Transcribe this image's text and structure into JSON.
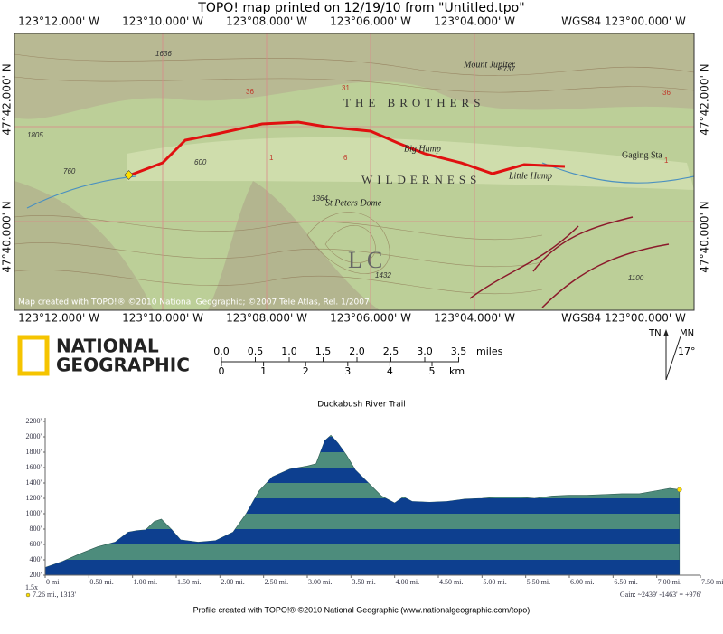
{
  "header": {
    "title": "TOPO! map printed on 12/19/10 from \"Untitled.tpo\""
  },
  "map": {
    "top_coords": [
      "123°12.000' W",
      "123°10.000' W",
      "123°08.000' W",
      "123°06.000' W",
      "123°04.000' W",
      "WGS84 123°00.000' W"
    ],
    "side_coords": [
      "47°42.000' N",
      "47°40.000' N"
    ],
    "labels": {
      "brothers": "THE BROTHERS",
      "wilderness": "WILDERNESS",
      "mount_jupiter": "Mount Jupiter",
      "big_hump": "Big Hump",
      "little_hump": "Little Hump",
      "st_peters": "St Peters Dome",
      "gaging": "Gaging Sta",
      "lc": "LC"
    },
    "elevations": [
      "1636",
      "5737",
      "1805",
      "760",
      "600",
      "1364",
      "1432",
      "1100"
    ],
    "sections": [
      "36",
      "31",
      "6",
      "1",
      "36",
      "1"
    ],
    "credit": "Map created with TOPO!® ©2010 National Geographic; ©2007 Tele Atlas, Rel. 1/2007"
  },
  "logo": {
    "line1": "NATIONAL",
    "line2": "GEOGRAPHIC"
  },
  "scale": {
    "miles": [
      "0.0",
      "0.5",
      "1.0",
      "1.5",
      "2.0",
      "2.5",
      "3.0",
      "3.5"
    ],
    "miles_unit": "miles",
    "km": [
      "0",
      "1",
      "2",
      "3",
      "4",
      "5"
    ],
    "km_unit": "km"
  },
  "north": {
    "tn": "TN",
    "mn": "MN",
    "declination": "17°"
  },
  "chart_data": {
    "type": "area",
    "title": "Duckabush River Trail",
    "x": [
      0,
      0.2,
      0.4,
      0.6,
      0.8,
      0.95,
      1.05,
      1.15,
      1.25,
      1.33,
      1.45,
      1.55,
      1.75,
      1.95,
      2.15,
      2.3,
      2.45,
      2.6,
      2.8,
      3.0,
      3.1,
      3.2,
      3.27,
      3.35,
      3.45,
      3.55,
      3.7,
      3.85,
      4.0,
      4.1,
      4.2,
      4.4,
      4.6,
      4.8,
      5.0,
      5.2,
      5.4,
      5.6,
      5.8,
      6.0,
      6.2,
      6.4,
      6.6,
      6.8,
      7.0,
      7.15,
      7.26
    ],
    "values": [
      300,
      380,
      480,
      570,
      630,
      760,
      780,
      790,
      900,
      930,
      790,
      660,
      630,
      650,
      760,
      1000,
      1300,
      1480,
      1580,
      1620,
      1650,
      1950,
      2020,
      1920,
      1760,
      1570,
      1400,
      1230,
      1140,
      1220,
      1160,
      1150,
      1160,
      1190,
      1200,
      1220,
      1220,
      1200,
      1230,
      1240,
      1240,
      1250,
      1260,
      1260,
      1300,
      1330,
      1313
    ],
    "colors": [
      "#4d8c7c",
      "#0d3f8f"
    ],
    "xlim": [
      0,
      7.5
    ],
    "ylim": [
      200,
      2200
    ],
    "xticks": [
      {
        "value": 0,
        "label": "0 mi"
      },
      {
        "value": 0.5,
        "label": "0.50 mi."
      },
      {
        "value": 1,
        "label": "1.00 mi."
      },
      {
        "value": 1.5,
        "label": "1.50 mi."
      },
      {
        "value": 2,
        "label": "2.00 mi."
      },
      {
        "value": 2.5,
        "label": "2.50 mi."
      },
      {
        "value": 3,
        "label": "3.00 mi."
      },
      {
        "value": 3.5,
        "label": "3.50 mi."
      },
      {
        "value": 4,
        "label": "4.00 mi."
      },
      {
        "value": 4.5,
        "label": "4.50 mi."
      },
      {
        "value": 5,
        "label": "5.00 mi."
      },
      {
        "value": 5.5,
        "label": "5.50 mi."
      },
      {
        "value": 6,
        "label": "6.00 mi."
      },
      {
        "value": 6.5,
        "label": "6.50 mi."
      },
      {
        "value": 7,
        "label": "7.00 mi."
      },
      {
        "value": 7.5,
        "label": "7.50 mi"
      }
    ],
    "yticks": [
      {
        "value": 200,
        "label": "200'"
      },
      {
        "value": 400,
        "label": "400'"
      },
      {
        "value": 600,
        "label": "600'"
      },
      {
        "value": 800,
        "label": "800'"
      },
      {
        "value": 1000,
        "label": "1000'"
      },
      {
        "value": 1200,
        "label": "1200'"
      },
      {
        "value": 1400,
        "label": "1400'"
      },
      {
        "value": 1600,
        "label": "1600'"
      },
      {
        "value": 1800,
        "label": "1800'"
      },
      {
        "value": 2000,
        "label": "2000'"
      },
      {
        "value": 2200,
        "label": "2200'"
      }
    ],
    "exaggeration": "1.5x",
    "end_label": "7.26 mi., 1313'",
    "gain": "Gain: ~2439' -1463' = +976'",
    "credit": "Profile created with TOPO!® ©2010 National Geographic (www.nationalgeographic.com/topo)"
  }
}
